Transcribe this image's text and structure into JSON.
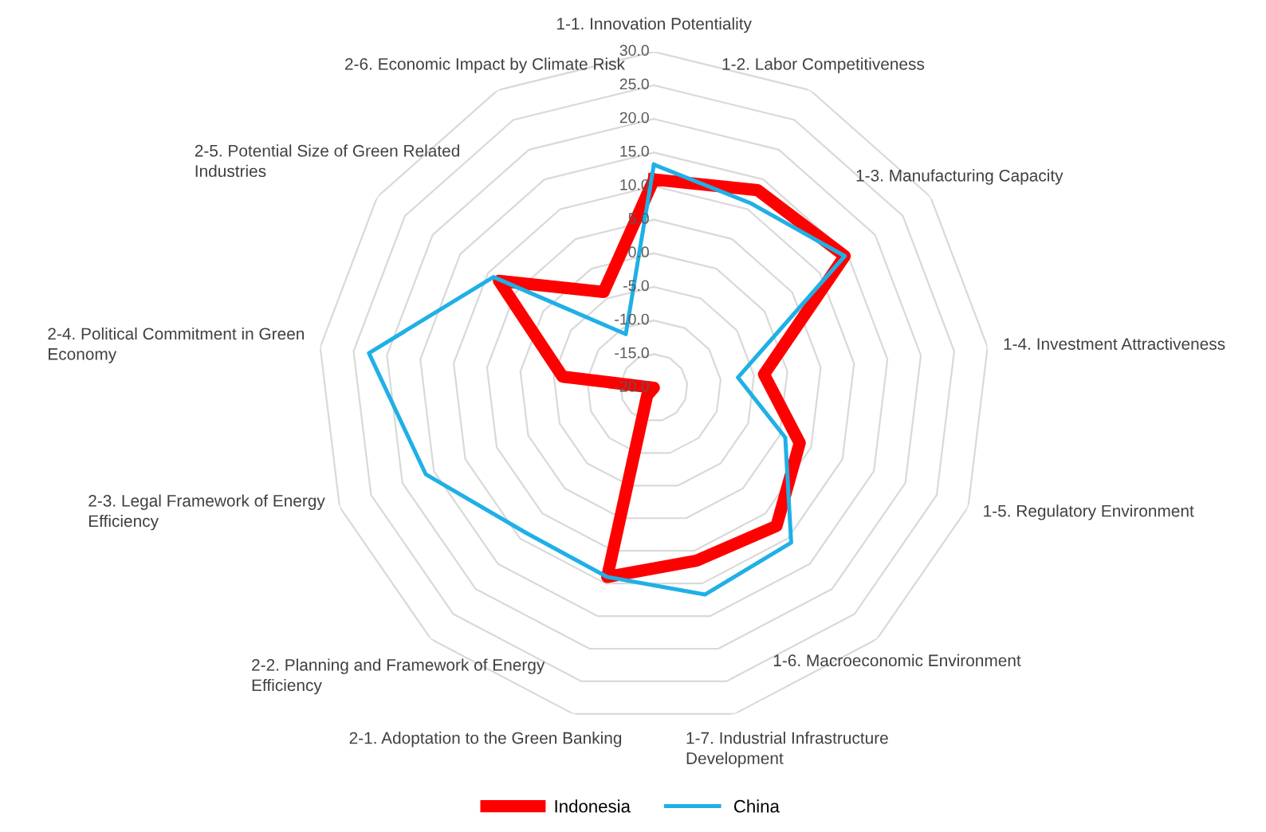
{
  "chart_data": {
    "type": "radar",
    "categories": [
      "1-1. Innovation Potentiality",
      "1-2. Labor Competitiveness",
      "1-3. Manufacturing Capacity",
      "1-4. Investment Attractiveness",
      "1-5. Regulatory Environment",
      "1-6. Macroeconomic Environment",
      "1-7. Industrial Infrastructure\nDevelopment",
      "2-1. Adoptation to the Green Banking",
      "2-2. Planning and Framework of Energy\nEfficiency",
      "2-3. Legal Framework of Energy\nEfficiency",
      "2-4. Political Commitment in Green\nEconomy",
      "2-5. Potential Size of Green Related\nIndustries",
      "2-6. Economic Impact by Climate Risk"
    ],
    "series": [
      {
        "name": "Indonesia",
        "color": "#ff0000",
        "values": [
          11.0,
          13.2,
          14.5,
          -3.5,
          3.2,
          7.5,
          6.5,
          9.0,
          -18.5,
          -20.0,
          -6.3,
          8.0,
          -3.9
        ]
      },
      {
        "name": "China",
        "color": "#1fb0e6",
        "values": [
          13.2,
          11.0,
          14.5,
          -7.4,
          0.9,
          10.8,
          11.7,
          9.0,
          8.8,
          16.3,
          22.7,
          9.0,
          -11.0
        ]
      }
    ],
    "ylim": [
      -20,
      30
    ],
    "yticks": [
      {
        "value": -20,
        "label": "-20.0"
      },
      {
        "value": -15,
        "label": "-15.0"
      },
      {
        "value": -10,
        "label": "-10.0"
      },
      {
        "value": -5,
        "label": "-5.0"
      },
      {
        "value": 0,
        "label": "0.0"
      },
      {
        "value": 5,
        "label": "5.0"
      },
      {
        "value": 10,
        "label": "10.0"
      },
      {
        "value": 15,
        "label": "15.0"
      },
      {
        "value": 20,
        "label": "20.0"
      },
      {
        "value": 25,
        "label": "25.0"
      },
      {
        "value": 30,
        "label": "30.0"
      }
    ],
    "grid": true,
    "legend": "bottom",
    "marker": "none"
  }
}
